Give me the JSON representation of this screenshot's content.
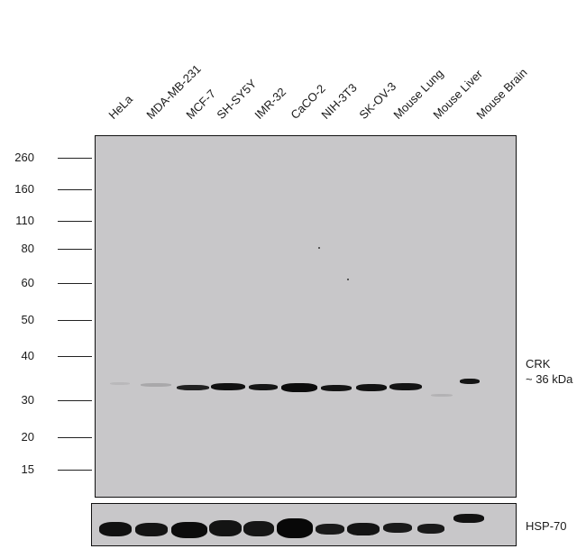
{
  "lanes": [
    "HeLa",
    "MDA-MB-231",
    "MCF-7",
    "SH-SY5Y",
    "IMR-32",
    "CaCO-2",
    "NIH-3T3",
    "SK-OV-3",
    "Mouse Lung",
    "Mouse Liver",
    "Mouse Brain"
  ],
  "markers": [
    "260",
    "160",
    "110",
    "80",
    "60",
    "50",
    "40",
    "30",
    "20",
    "15"
  ],
  "target": {
    "name": "CRK",
    "size": "~ 36 kDa"
  },
  "loading_control": "HSP-70",
  "colors": {
    "membrane": "#c8c7c9",
    "band": "#111111",
    "border": "#111111"
  }
}
